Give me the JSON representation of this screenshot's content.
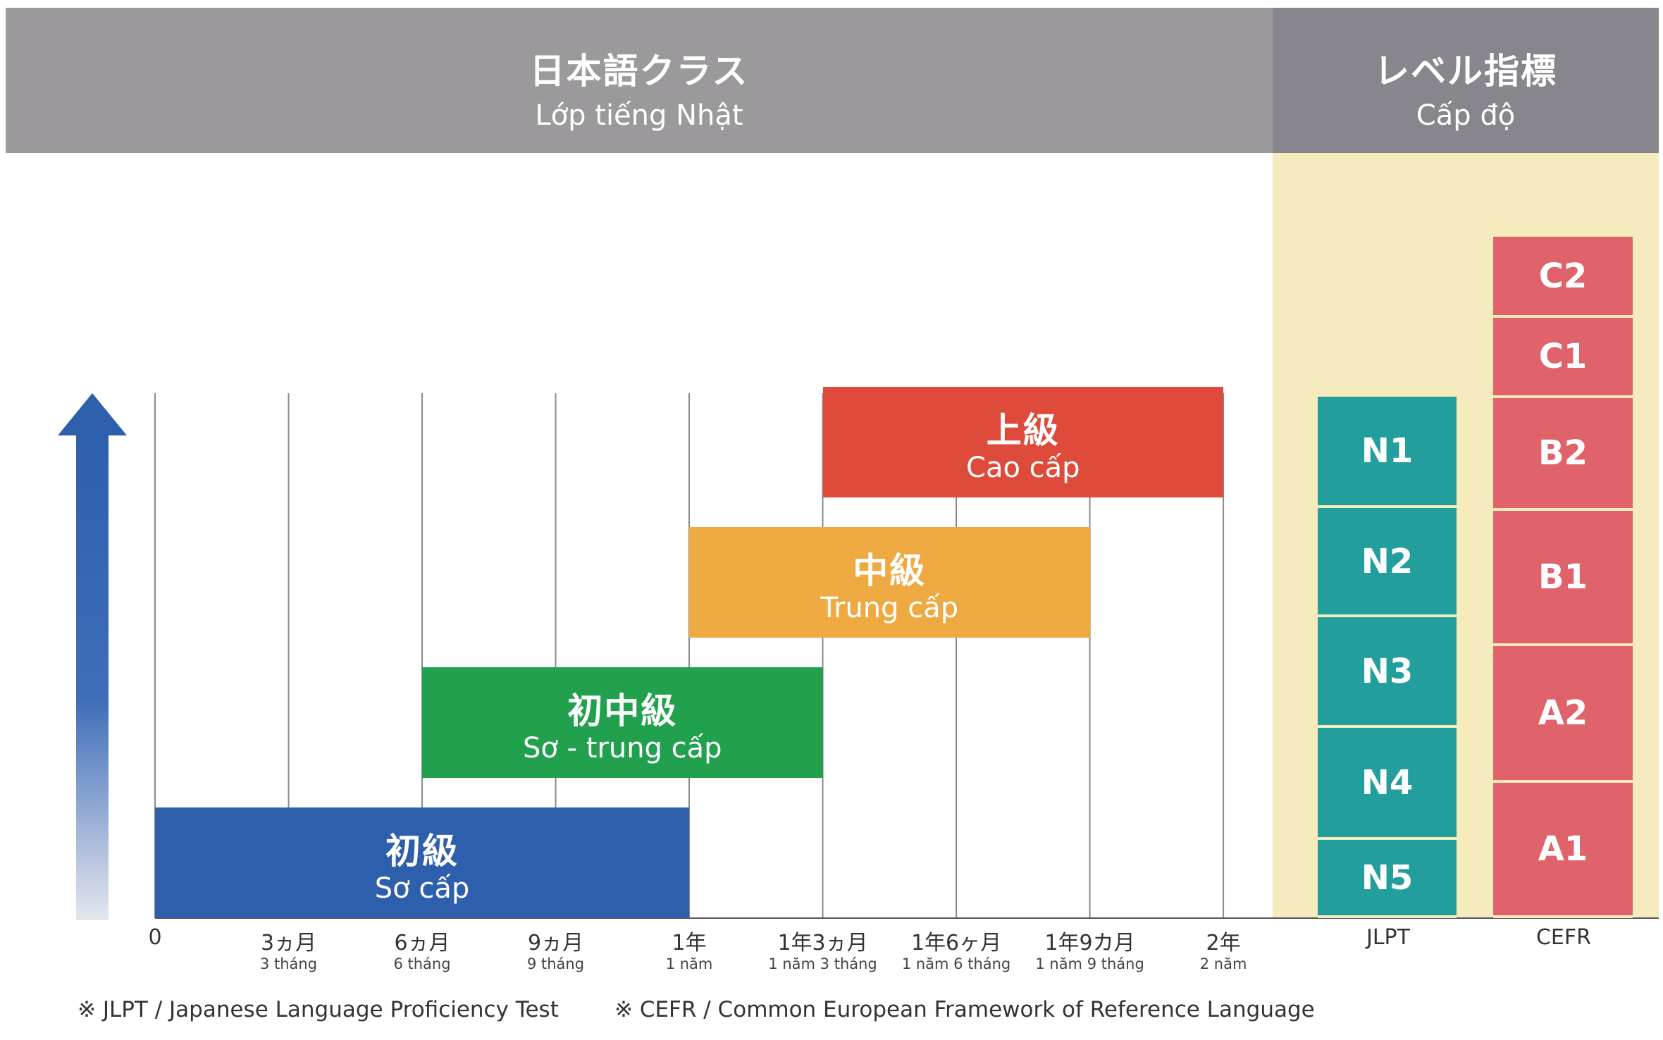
{
  "header": {
    "class_title_jp": "日本語クラス",
    "class_title_vn": "Lớp tiếng Nhật",
    "level_title_jp": "レベル指標",
    "level_title_vn": "Cấp độ"
  },
  "timeline": {
    "ticks": [
      {
        "main": "0",
        "sub": ""
      },
      {
        "main": "3ヵ月",
        "sub": "3 tháng"
      },
      {
        "main": "6ヵ月",
        "sub": "6 tháng"
      },
      {
        "main": "9ヵ月",
        "sub": "9 tháng"
      },
      {
        "main": "1年",
        "sub": "1 năm"
      },
      {
        "main": "1年3ヵ月",
        "sub": "1 năm 3 tháng"
      },
      {
        "main": "1年6ヶ月",
        "sub": "1 năm 6 tháng"
      },
      {
        "main": "1年9カ月",
        "sub": "1 năm 9 tháng"
      },
      {
        "main": "2年",
        "sub": "2 năm"
      }
    ]
  },
  "courses": [
    {
      "jp": "初級",
      "vn": "Sơ cấp",
      "start_month": 0,
      "end_month": 12,
      "color": "#2e5fad"
    },
    {
      "jp": "初中級",
      "vn": "Sơ - trung cấp",
      "start_month": 6,
      "end_month": 15,
      "color": "#21a04e"
    },
    {
      "jp": "中級",
      "vn": "Trung cấp",
      "start_month": 12,
      "end_month": 21,
      "color": "#efa941"
    },
    {
      "jp": "上級",
      "vn": "Cao cấp",
      "start_month": 15,
      "end_month": 24,
      "color": "#de4b3a"
    }
  ],
  "jlpt": {
    "label": "JLPT",
    "levels": [
      "N1",
      "N2",
      "N3",
      "N4",
      "N5"
    ],
    "color": "#229e9c"
  },
  "cefr": {
    "label": "CEFR",
    "levels": [
      "C2",
      "C1",
      "B2",
      "B1",
      "A2",
      "A1"
    ],
    "color": "#e0636c"
  },
  "notes": {
    "jlpt": "※ JLPT / Japanese Language Proficiency Test",
    "cefr": "※ CEFR / Common European Framework of Reference Language"
  },
  "colors": {
    "header_left": "#9b999c",
    "header_right": "#88868c",
    "level_panel": "#f6ebbd",
    "arrow": "#2e5fad"
  }
}
